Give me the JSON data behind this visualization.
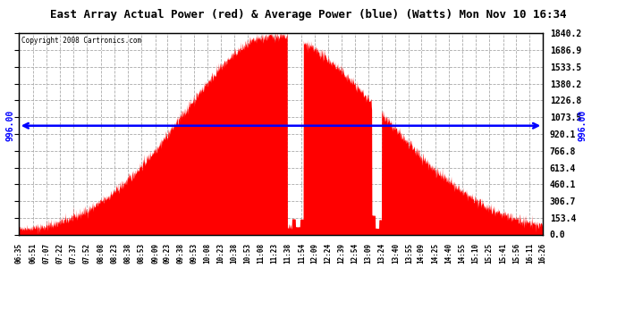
{
  "title": "East Array Actual Power (red) & Average Power (blue) (Watts) Mon Nov 10 16:34",
  "copyright": "Copyright 2008 Cartronics.com",
  "avg_power": 996.0,
  "y_max": 1840.2,
  "y_ticks": [
    0.0,
    153.4,
    306.7,
    460.1,
    613.4,
    766.8,
    920.1,
    1073.5,
    1226.8,
    1380.2,
    1533.5,
    1686.9,
    1840.2
  ],
  "bg_color": "#ffffff",
  "fill_color": "#ff0000",
  "line_color": "#0000ff",
  "grid_color": "#aaaaaa",
  "title_bg": "#cccccc",
  "x_tick_labels": [
    "06:35",
    "06:51",
    "07:07",
    "07:22",
    "07:37",
    "07:52",
    "08:08",
    "08:23",
    "08:38",
    "08:53",
    "09:09",
    "09:23",
    "09:38",
    "09:53",
    "10:08",
    "10:23",
    "10:38",
    "10:53",
    "11:08",
    "11:23",
    "11:38",
    "11:54",
    "12:09",
    "12:24",
    "12:39",
    "12:54",
    "13:09",
    "13:24",
    "13:40",
    "13:55",
    "14:09",
    "14:25",
    "14:40",
    "14:55",
    "15:10",
    "15:25",
    "15:41",
    "15:56",
    "16:11",
    "16:26"
  ]
}
